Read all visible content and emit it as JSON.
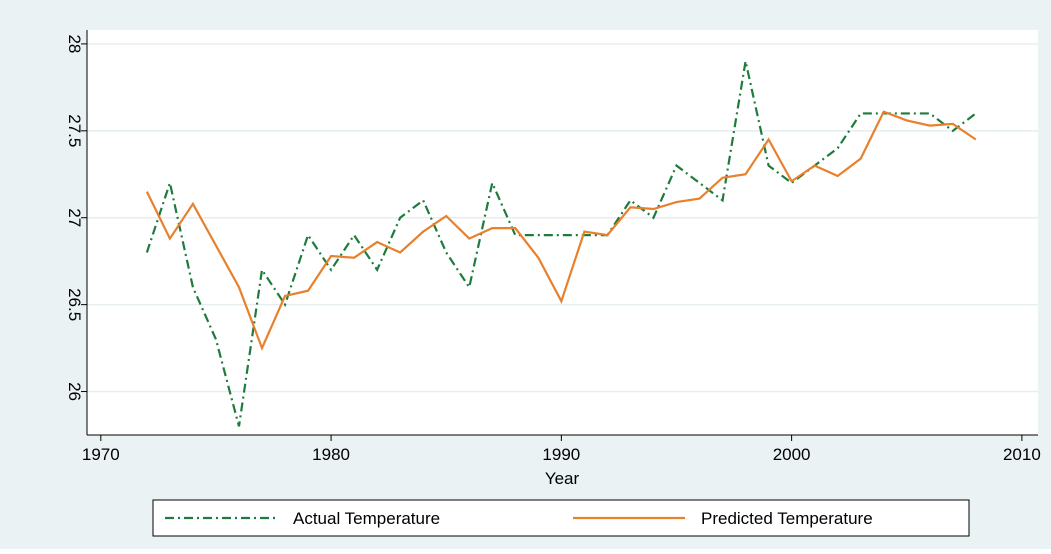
{
  "chart_data": {
    "type": "line",
    "x_label": "Year",
    "x": [
      1972,
      1973,
      1974,
      1975,
      1976,
      1977,
      1978,
      1979,
      1980,
      1981,
      1982,
      1983,
      1984,
      1985,
      1986,
      1987,
      1988,
      1989,
      1990,
      1991,
      1992,
      1993,
      1994,
      1995,
      1996,
      1997,
      1998,
      1999,
      2000,
      2001,
      2002,
      2003,
      2004,
      2005,
      2006,
      2007,
      2008
    ],
    "series": [
      {
        "name": "Actual Temperature",
        "color": "#1e7b3c",
        "style": "dashdot",
        "values": [
          26.8,
          27.2,
          26.6,
          26.3,
          25.8,
          26.7,
          26.5,
          26.9,
          26.7,
          26.9,
          26.7,
          27.0,
          27.1,
          26.8,
          26.6,
          27.2,
          26.9,
          26.9,
          26.9,
          26.9,
          26.9,
          27.1,
          27.0,
          27.3,
          27.2,
          27.1,
          27.9,
          27.3,
          27.2,
          27.3,
          27.4,
          27.6,
          27.6,
          27.6,
          27.6,
          27.5,
          27.6
        ]
      },
      {
        "name": "Predicted Temperature",
        "color": "#e8802c",
        "style": "solid",
        "values": [
          27.15,
          26.88,
          27.08,
          26.84,
          26.6,
          26.25,
          26.55,
          26.58,
          26.78,
          26.77,
          26.86,
          26.8,
          26.92,
          27.01,
          26.88,
          26.94,
          26.94,
          26.77,
          26.52,
          26.92,
          26.9,
          27.06,
          27.05,
          27.09,
          27.11,
          27.23,
          27.25,
          27.45,
          27.21,
          27.3,
          27.24,
          27.34,
          27.61,
          27.56,
          27.53,
          27.54,
          27.45
        ]
      }
    ],
    "xlim": [
      1969.4,
      2010.7
    ],
    "xticks": [
      1970,
      1980,
      1990,
      2000,
      2010
    ],
    "ylim": [
      25.75,
      28.08
    ],
    "yticks": [
      26,
      26.5,
      27,
      27.5,
      28
    ],
    "grid": true,
    "legend": "bottom"
  }
}
